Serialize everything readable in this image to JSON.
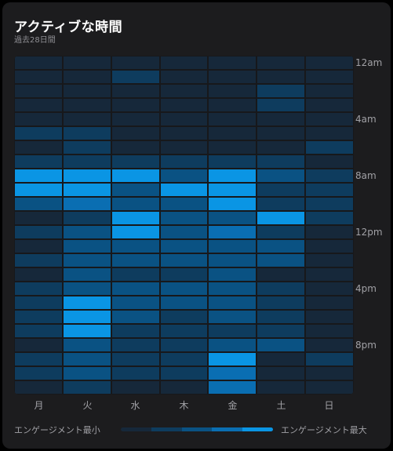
{
  "header": {
    "title": "アクティブな時間",
    "subtitle": "過去28日間"
  },
  "legend": {
    "min_label": "エンゲージメント最小",
    "max_label": "エンゲージメント最大"
  },
  "colors": {
    "scale": [
      "#16283a",
      "#0e3c5e",
      "#0a5283",
      "#0a6eb2",
      "#0a95e4"
    ]
  },
  "chart_data": {
    "type": "heatmap",
    "x": [
      "月",
      "火",
      "水",
      "木",
      "金",
      "土",
      "日"
    ],
    "y_tick_labels": [
      "12am",
      "4am",
      "8am",
      "12pm",
      "4pm",
      "8pm"
    ],
    "value_scale": "engagement level 0 (min) to 4 (max)",
    "values": [
      [
        0,
        0,
        0,
        0,
        0,
        0,
        0
      ],
      [
        0,
        0,
        1,
        0,
        0,
        0,
        0
      ],
      [
        0,
        0,
        0,
        0,
        0,
        1,
        0
      ],
      [
        0,
        0,
        0,
        0,
        0,
        1,
        0
      ],
      [
        0,
        0,
        0,
        0,
        0,
        0,
        0
      ],
      [
        1,
        1,
        0,
        0,
        0,
        0,
        0
      ],
      [
        0,
        1,
        0,
        0,
        0,
        0,
        1
      ],
      [
        1,
        1,
        1,
        1,
        1,
        1,
        0
      ],
      [
        4,
        4,
        4,
        2,
        4,
        2,
        1
      ],
      [
        4,
        4,
        2,
        4,
        4,
        1,
        1
      ],
      [
        2,
        3,
        2,
        2,
        4,
        1,
        1
      ],
      [
        0,
        1,
        4,
        2,
        2,
        4,
        1
      ],
      [
        1,
        2,
        4,
        2,
        3,
        1,
        0
      ],
      [
        0,
        2,
        2,
        2,
        2,
        2,
        0
      ],
      [
        1,
        2,
        2,
        2,
        2,
        2,
        0
      ],
      [
        0,
        2,
        1,
        1,
        2,
        0,
        0
      ],
      [
        1,
        2,
        2,
        2,
        2,
        1,
        0
      ],
      [
        1,
        4,
        2,
        2,
        2,
        1,
        0
      ],
      [
        1,
        4,
        2,
        1,
        2,
        1,
        0
      ],
      [
        1,
        4,
        1,
        1,
        1,
        1,
        0
      ],
      [
        0,
        2,
        1,
        1,
        2,
        2,
        0
      ],
      [
        1,
        2,
        1,
        1,
        4,
        0,
        1
      ],
      [
        1,
        2,
        1,
        1,
        3,
        0,
        0
      ],
      [
        0,
        1,
        0,
        0,
        3,
        0,
        0
      ]
    ]
  }
}
